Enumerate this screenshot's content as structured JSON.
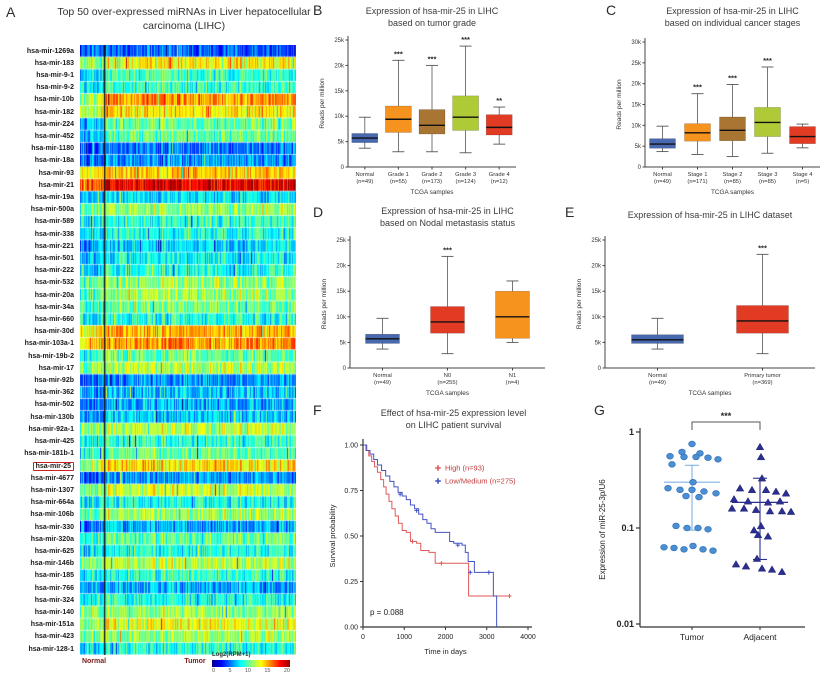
{
  "chart_data": [
    {
      "type": "heatmap",
      "panel": "A",
      "title": "Top 50 over-expressed miRNAs in Liver hepatocellular carcinoma (LIHC)",
      "group_labels": [
        "Normal",
        "Tumor"
      ],
      "colorbar": {
        "label": "Log2(RPM+1)",
        "ticks": [
          "0",
          "5",
          "10",
          "15",
          "20"
        ]
      },
      "highlighted_row": "hsa-mir-25",
      "value_range": [
        0,
        20
      ],
      "rows": [
        [
          "hsa-mir-1269a",
          4.5,
          4.5
        ],
        [
          "hsa-mir-183",
          10,
          12.5
        ],
        [
          "hsa-mir-9-1",
          7,
          8.5
        ],
        [
          "hsa-mir-9-2",
          7,
          8.5
        ],
        [
          "hsa-mir-10b",
          11,
          14.5
        ],
        [
          "hsa-mir-182",
          11,
          13
        ],
        [
          "hsa-mir-224",
          6,
          9.5
        ],
        [
          "hsa-mir-452",
          6.5,
          9.5
        ],
        [
          "hsa-mir-1180",
          4.5,
          5
        ],
        [
          "hsa-mir-18a",
          4.5,
          5.5
        ],
        [
          "hsa-mir-93",
          12,
          13.5
        ],
        [
          "hsa-mir-21",
          15.5,
          18
        ],
        [
          "hsa-mir-19a",
          6,
          7
        ],
        [
          "hsa-mir-500a",
          9,
          10.5
        ],
        [
          "hsa-mir-589",
          7.5,
          8.5
        ],
        [
          "hsa-mir-338",
          7,
          8
        ],
        [
          "hsa-mir-221",
          6,
          7
        ],
        [
          "hsa-mir-501",
          6.5,
          7.5
        ],
        [
          "hsa-mir-222",
          6.5,
          8
        ],
        [
          "hsa-mir-532",
          9.5,
          10.5
        ],
        [
          "hsa-mir-20a",
          9,
          10.5
        ],
        [
          "hsa-mir-34a",
          8,
          9.5
        ],
        [
          "hsa-mir-660",
          7,
          8
        ],
        [
          "hsa-mir-30d",
          12.5,
          14
        ],
        [
          "hsa-mir-103a-1",
          13,
          14.5
        ],
        [
          "hsa-mir-19b-2",
          8,
          9.5
        ],
        [
          "hsa-mir-17",
          9.5,
          11
        ],
        [
          "hsa-mir-92b",
          4.5,
          5.5
        ],
        [
          "hsa-mir-362",
          5.5,
          6.5
        ],
        [
          "hsa-mir-502",
          5,
          6
        ],
        [
          "hsa-mir-130b",
          5,
          6.5
        ],
        [
          "hsa-mir-92a-1",
          10,
          11
        ],
        [
          "hsa-mir-425",
          7.5,
          8.5
        ],
        [
          "hsa-mir-181b-1",
          8.5,
          9.5
        ],
        [
          "hsa-mir-25",
          11,
          13
        ],
        [
          "hsa-mir-4677",
          4.5,
          5.5
        ],
        [
          "hsa-mir-1307",
          10,
          11.5
        ],
        [
          "hsa-mir-664a",
          7,
          8
        ],
        [
          "hsa-mir-106b",
          9,
          10.5
        ],
        [
          "hsa-mir-330",
          5,
          6
        ],
        [
          "hsa-mir-320a",
          8.5,
          9.5
        ],
        [
          "hsa-mir-625",
          7,
          8
        ],
        [
          "hsa-mir-146b",
          10,
          11
        ],
        [
          "hsa-mir-185",
          7.5,
          8.5
        ],
        [
          "hsa-mir-766",
          5,
          6
        ],
        [
          "hsa-mir-324",
          7.5,
          8
        ],
        [
          "hsa-mir-140",
          9.5,
          10.5
        ],
        [
          "hsa-mir-151a",
          10.5,
          12
        ],
        [
          "hsa-mir-423",
          9.5,
          10.5
        ],
        [
          "hsa-mir-128-1",
          7,
          8
        ]
      ]
    },
    {
      "type": "box",
      "panel": "B",
      "title_lines": [
        "Expression of hsa-mir-25  in LIHC",
        "based on tumor grade"
      ],
      "ylabel": "Reads per million",
      "xlabel": "TCGA samples",
      "ylim": [
        0,
        25000
      ],
      "ytick_labels": [
        "0",
        "5k",
        "10k",
        "15k",
        "20k",
        "25k"
      ],
      "categories": [
        {
          "label": "Normal",
          "n": "(n=49)",
          "color": "#4868b0",
          "box": [
            3700,
            4800,
            5700,
            6600,
            9800
          ],
          "sig": ""
        },
        {
          "label": "Grade 1",
          "n": "(n=55)",
          "color": "#f6921e",
          "box": [
            3000,
            6800,
            9400,
            12000,
            21000
          ],
          "sig": "***"
        },
        {
          "label": "Grade 2",
          "n": "(n=173)",
          "color": "#a87532",
          "box": [
            3000,
            6500,
            8200,
            11300,
            20000
          ],
          "sig": "***"
        },
        {
          "label": "Grade 3",
          "n": "(n=124)",
          "color": "#aecb37",
          "box": [
            2800,
            7200,
            9800,
            14000,
            23800
          ],
          "sig": "***"
        },
        {
          "label": "Grade 4",
          "n": "(n=12)",
          "color": "#e23b24",
          "box": [
            4500,
            6300,
            7800,
            10300,
            11800
          ],
          "sig": "**"
        }
      ]
    },
    {
      "type": "box",
      "panel": "C",
      "title_lines": [
        "Expression of hsa-mir-25  in LIHC",
        "based on individual cancer stages"
      ],
      "ylabel": "Reads per million",
      "xlabel": "TCGA samples",
      "ylim": [
        0,
        30000
      ],
      "ytick_labels": [
        "0",
        "5k",
        "10k",
        "15k",
        "20k",
        "25k",
        "30k"
      ],
      "categories": [
        {
          "label": "Normal",
          "n": "(n=49)",
          "color": "#4868b0",
          "box": [
            3700,
            4500,
            5500,
            6800,
            9800
          ],
          "sig": ""
        },
        {
          "label": "Stage 1",
          "n": "(n=171)",
          "color": "#f6921e",
          "box": [
            3000,
            6200,
            8200,
            10400,
            17600
          ],
          "sig": "***"
        },
        {
          "label": "Stage 2",
          "n": "(n=85)",
          "color": "#a87532",
          "box": [
            2500,
            6300,
            8800,
            12000,
            19800
          ],
          "sig": "***"
        },
        {
          "label": "Stage 3",
          "n": "(n=85)",
          "color": "#aecb37",
          "box": [
            3300,
            7300,
            10700,
            14300,
            24000
          ],
          "sig": "***"
        },
        {
          "label": "Stage 4",
          "n": "(n=5)",
          "color": "#e23b24",
          "box": [
            4600,
            5600,
            7300,
            9700,
            10300
          ],
          "sig": ""
        }
      ]
    },
    {
      "type": "box",
      "panel": "D",
      "title_lines": [
        "Expression of hsa-mir-25  in LIHC",
        "based on Nodal metastasis status"
      ],
      "ylabel": "Reads per million",
      "xlabel": "TCGA samples",
      "ylim": [
        0,
        25000
      ],
      "ytick_labels": [
        "0",
        "5k",
        "10k",
        "15k",
        "20k",
        "25k"
      ],
      "categories": [
        {
          "label": "Normal",
          "n": "(n=49)",
          "color": "#4868b0",
          "box": [
            3700,
            4800,
            5700,
            6600,
            9700
          ],
          "sig": ""
        },
        {
          "label": "N0",
          "n": "(n=255)",
          "color": "#e23b24",
          "box": [
            2800,
            6800,
            9000,
            12000,
            21800
          ],
          "sig": "***"
        },
        {
          "label": "N1",
          "n": "(n=4)",
          "color": "#f6921e",
          "box": [
            5000,
            5800,
            10000,
            15000,
            17000
          ],
          "sig": ""
        }
      ]
    },
    {
      "type": "box",
      "panel": "E",
      "title_lines": [
        "Expression of hsa-mir-25  in LIHC dataset"
      ],
      "ylabel": "Reads per million",
      "xlabel": "TCGA samples",
      "ylim": [
        0,
        25000
      ],
      "ytick_labels": [
        "0",
        "5k",
        "10k",
        "15k",
        "20k",
        "25k"
      ],
      "categories": [
        {
          "label": "Normal",
          "n": "(n=49)",
          "color": "#4868b0",
          "box": [
            3700,
            4800,
            5500,
            6500,
            9700
          ],
          "sig": ""
        },
        {
          "label": "Primary tumor",
          "n": "(n=369)",
          "color": "#e23b24",
          "box": [
            2800,
            6800,
            9200,
            12200,
            22200
          ],
          "sig": "***"
        }
      ]
    },
    {
      "type": "line",
      "panel": "F",
      "title_lines": [
        "Effect of hsa-mir-25 expression level",
        "on LIHC patient survival"
      ],
      "ylabel": "Survival probability",
      "xlabel": "Time in days",
      "xlim": [
        0,
        4000
      ],
      "xticks": [
        "0",
        "1000",
        "2000",
        "3000",
        "4000"
      ],
      "yticks": [
        "0.00",
        "0.25",
        "0.50",
        "0.75",
        "1.00"
      ],
      "p_value": "p = 0.088",
      "legend_text_color": "#c23b3b",
      "series": [
        {
          "name": "High (n=93)",
          "color": "#e05a5a",
          "points": [
            [
              0,
              1.0
            ],
            [
              70,
              0.97
            ],
            [
              140,
              0.94
            ],
            [
              210,
              0.91
            ],
            [
              280,
              0.88
            ],
            [
              350,
              0.85
            ],
            [
              430,
              0.81
            ],
            [
              500,
              0.77
            ],
            [
              560,
              0.73
            ],
            [
              630,
              0.69
            ],
            [
              700,
              0.65
            ],
            [
              780,
              0.61
            ],
            [
              860,
              0.57
            ],
            [
              950,
              0.53
            ],
            [
              1050,
              0.52
            ],
            [
              1150,
              0.47
            ],
            [
              1300,
              0.46
            ],
            [
              1400,
              0.42
            ],
            [
              1600,
              0.41
            ],
            [
              1750,
              0.35
            ],
            [
              2500,
              0.35
            ],
            [
              2560,
              0.17
            ],
            [
              3600,
              0.17
            ]
          ],
          "censors": [
            [
              1200,
              0.47
            ],
            [
              1900,
              0.35
            ],
            [
              3550,
              0.17
            ]
          ]
        },
        {
          "name": "Low/Medium (n=275)",
          "color": "#4353c4",
          "points": [
            [
              0,
              1.0
            ],
            [
              90,
              0.97
            ],
            [
              170,
              0.95
            ],
            [
              260,
              0.92
            ],
            [
              350,
              0.89
            ],
            [
              450,
              0.86
            ],
            [
              550,
              0.83
            ],
            [
              650,
              0.8
            ],
            [
              750,
              0.77
            ],
            [
              850,
              0.74
            ],
            [
              950,
              0.72
            ],
            [
              1050,
              0.7
            ],
            [
              1150,
              0.67
            ],
            [
              1250,
              0.65
            ],
            [
              1350,
              0.62
            ],
            [
              1450,
              0.59
            ],
            [
              1550,
              0.57
            ],
            [
              1650,
              0.54
            ],
            [
              1750,
              0.52
            ],
            [
              2050,
              0.52
            ],
            [
              2100,
              0.47
            ],
            [
              2200,
              0.46
            ],
            [
              2400,
              0.45
            ],
            [
              2480,
              0.41
            ],
            [
              2550,
              0.36
            ],
            [
              2700,
              0.3
            ],
            [
              3100,
              0.3
            ],
            [
              3160,
              0.17
            ],
            [
              3230,
              0.17
            ],
            [
              3240,
              0.0
            ]
          ],
          "censors": [
            [
              900,
              0.73
            ],
            [
              1300,
              0.64
            ],
            [
              2300,
              0.45
            ],
            [
              2600,
              0.3
            ],
            [
              3050,
              0.3
            ]
          ]
        }
      ]
    },
    {
      "type": "scatter",
      "panel": "G",
      "ylabel": "Expression of miR-25-3p/U6",
      "ytick_labels": [
        "1",
        "0.1",
        "0.01"
      ],
      "ytick_values": [
        1,
        0.1,
        0.01
      ],
      "sig": "***",
      "groups": [
        {
          "name": "Tumor",
          "marker": "circle",
          "color": "#4a8fd3",
          "stroke": "#2f6db3",
          "line_color": "#7fb2e5",
          "mean": 0.3,
          "err_low": 0.095,
          "err_high": 0.45,
          "points": [
            [
              0,
              0.75
            ],
            [
              -10,
              0.62
            ],
            [
              8,
              0.6
            ],
            [
              -22,
              0.56
            ],
            [
              -8,
              0.55
            ],
            [
              4,
              0.55
            ],
            [
              16,
              0.54
            ],
            [
              26,
              0.52
            ],
            [
              -20,
              0.46
            ],
            [
              1,
              0.3
            ],
            [
              -24,
              0.26
            ],
            [
              -12,
              0.25
            ],
            [
              0,
              0.25
            ],
            [
              12,
              0.24
            ],
            [
              24,
              0.23
            ],
            [
              -6,
              0.215
            ],
            [
              7,
              0.21
            ],
            [
              -16,
              0.105
            ],
            [
              -5,
              0.1
            ],
            [
              6,
              0.1
            ],
            [
              16,
              0.097
            ],
            [
              -28,
              0.063
            ],
            [
              -18,
              0.062
            ],
            [
              -8,
              0.06
            ],
            [
              1,
              0.065
            ],
            [
              11,
              0.06
            ],
            [
              21,
              0.058
            ]
          ]
        },
        {
          "name": "Adjacent",
          "marker": "triangle",
          "color": "#2c2f8f",
          "stroke": "#1f2370",
          "line_color": "#2c2f8f",
          "mean": 0.185,
          "err_low": 0.047,
          "err_high": 0.33,
          "points": [
            [
              0,
              0.7
            ],
            [
              1,
              0.55
            ],
            [
              2,
              0.33
            ],
            [
              -20,
              0.26
            ],
            [
              -8,
              0.25
            ],
            [
              6,
              0.25
            ],
            [
              16,
              0.24
            ],
            [
              26,
              0.23
            ],
            [
              -26,
              0.2
            ],
            [
              -12,
              0.19
            ],
            [
              20,
              0.19
            ],
            [
              8,
              0.185
            ],
            [
              -28,
              0.16
            ],
            [
              -16,
              0.16
            ],
            [
              -4,
              0.155
            ],
            [
              10,
              0.15
            ],
            [
              22,
              0.15
            ],
            [
              31,
              0.148
            ],
            [
              1,
              0.105
            ],
            [
              -6,
              0.095
            ],
            [
              -2,
              0.085
            ],
            [
              8,
              0.082
            ],
            [
              -3,
              0.048
            ],
            [
              -24,
              0.042
            ],
            [
              -14,
              0.04
            ],
            [
              2,
              0.038
            ],
            [
              12,
              0.037
            ],
            [
              22,
              0.035
            ]
          ]
        }
      ]
    }
  ]
}
